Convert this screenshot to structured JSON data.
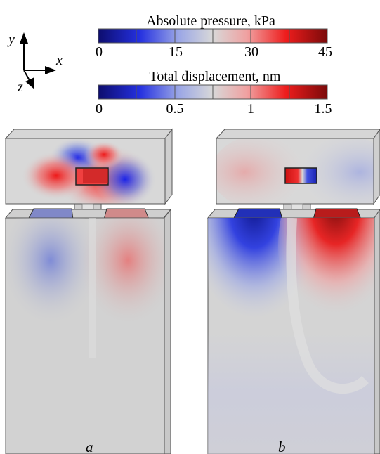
{
  "axes": {
    "x_label": "x",
    "y_label": "y",
    "z_label": "z"
  },
  "colorbars": [
    {
      "title": "Absolute pressure, kPa",
      "ticks": [
        "0",
        "15",
        "30",
        "45"
      ]
    },
    {
      "title": "Total displacement, nm",
      "ticks": [
        "0",
        "0.5",
        "1",
        "1.5"
      ]
    }
  ],
  "colormap": {
    "low": "#1a1aaa",
    "mid": "#d4d4d4",
    "high": "#aa1a1a"
  },
  "panels": [
    {
      "label": "a"
    },
    {
      "label": "b"
    }
  ]
}
